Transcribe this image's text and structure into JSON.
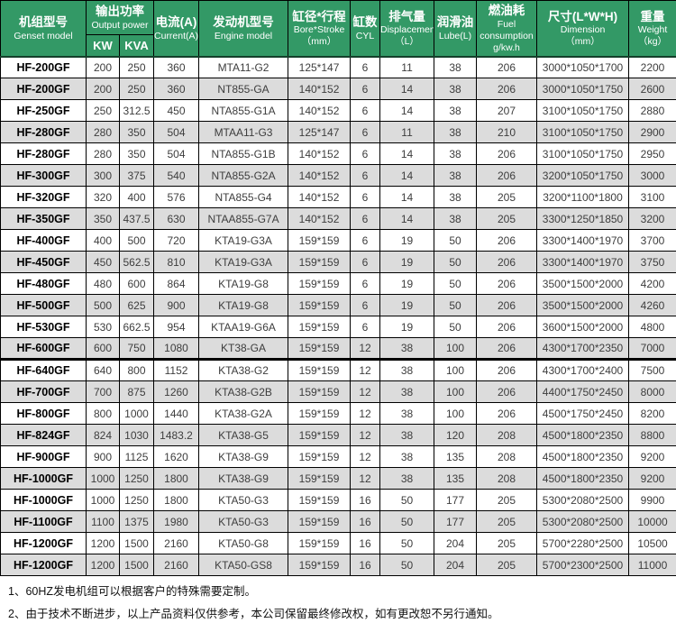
{
  "table": {
    "headers": {
      "model": {
        "zh": "机组型号",
        "en": "Genset model"
      },
      "output_power": {
        "zh": "输出功率",
        "en": "Output power",
        "sub": [
          "KW",
          "KVA"
        ]
      },
      "current": {
        "zh": "电流(A)",
        "en": "Current(A)"
      },
      "engine": {
        "zh": "发动机型号",
        "en": "Engine model"
      },
      "bore_stroke": {
        "zh": "缸径*行程",
        "en": "Bore*Stroke",
        "unit": "（mm）"
      },
      "cyl": {
        "zh": "缸数",
        "en": "CYL"
      },
      "displacement": {
        "zh": "排气量",
        "en": "Displacement",
        "unit": "（L）"
      },
      "lube": {
        "zh": "润滑油",
        "en": "Lube(L)"
      },
      "fuel_consumption": {
        "zh": "燃油耗",
        "en": "Fuel consumption",
        "unit": "g/kw.h"
      },
      "dimension": {
        "zh": "尺寸(L*W*H)",
        "en": "Dimension",
        "unit": "（mm）"
      },
      "weight": {
        "zh": "重量",
        "en": "Weight",
        "unit": "（kg）"
      }
    },
    "column_keys": [
      "model",
      "kw",
      "kva",
      "current",
      "engine",
      "bore_stroke",
      "cyl",
      "displacement",
      "lube",
      "fuel_consumption",
      "dimension",
      "weight"
    ],
    "thick_divider_after_row": 14,
    "rows": [
      [
        "HF-200GF",
        "200",
        "250",
        "360",
        "MTA11-G2",
        "125*147",
        "6",
        "11",
        "38",
        "206",
        "3000*1050*1700",
        "2200"
      ],
      [
        "HF-200GF",
        "200",
        "250",
        "360",
        "NT855-GA",
        "140*152",
        "6",
        "14",
        "38",
        "206",
        "3000*1050*1750",
        "2600"
      ],
      [
        "HF-250GF",
        "250",
        "312.5",
        "450",
        "NTA855-G1A",
        "140*152",
        "6",
        "14",
        "38",
        "207",
        "3100*1050*1750",
        "2880"
      ],
      [
        "HF-280GF",
        "280",
        "350",
        "504",
        "MTAA11-G3",
        "125*147",
        "6",
        "11",
        "38",
        "210",
        "3100*1050*1750",
        "2900"
      ],
      [
        "HF-280GF",
        "280",
        "350",
        "504",
        "NTA855-G1B",
        "140*152",
        "6",
        "14",
        "38",
        "206",
        "3100*1050*1750",
        "2950"
      ],
      [
        "HF-300GF",
        "300",
        "375",
        "540",
        "NTA855-G2A",
        "140*152",
        "6",
        "14",
        "38",
        "206",
        "3200*1050*1750",
        "3000"
      ],
      [
        "HF-320GF",
        "320",
        "400",
        "576",
        "NTA855-G4",
        "140*152",
        "6",
        "14",
        "38",
        "205",
        "3200*1100*1800",
        "3100"
      ],
      [
        "HF-350GF",
        "350",
        "437.5",
        "630",
        "NTAA855-G7A",
        "140*152",
        "6",
        "14",
        "38",
        "205",
        "3300*1250*1850",
        "3200"
      ],
      [
        "HF-400GF",
        "400",
        "500",
        "720",
        "KTA19-G3A",
        "159*159",
        "6",
        "19",
        "50",
        "206",
        "3300*1400*1970",
        "3700"
      ],
      [
        "HF-450GF",
        "450",
        "562.5",
        "810",
        "KTA19-G3A",
        "159*159",
        "6",
        "19",
        "50",
        "206",
        "3300*1400*1970",
        "3750"
      ],
      [
        "HF-480GF",
        "480",
        "600",
        "864",
        "KTA19-G8",
        "159*159",
        "6",
        "19",
        "50",
        "206",
        "3500*1500*2000",
        "4200"
      ],
      [
        "HF-500GF",
        "500",
        "625",
        "900",
        "KTA19-G8",
        "159*159",
        "6",
        "19",
        "50",
        "206",
        "3500*1500*2000",
        "4260"
      ],
      [
        "HF-530GF",
        "530",
        "662.5",
        "954",
        "KTAA19-G6A",
        "159*159",
        "6",
        "19",
        "50",
        "206",
        "3600*1500*2000",
        "4800"
      ],
      [
        "HF-600GF",
        "600",
        "750",
        "1080",
        "KT38-GA",
        "159*159",
        "12",
        "38",
        "100",
        "206",
        "4300*1700*2350",
        "7000"
      ],
      [
        "HF-640GF",
        "640",
        "800",
        "1152",
        "KTA38-G2",
        "159*159",
        "12",
        "38",
        "100",
        "206",
        "4300*1700*2400",
        "7500"
      ],
      [
        "HF-700GF",
        "700",
        "875",
        "1260",
        "KTA38-G2B",
        "159*159",
        "12",
        "38",
        "100",
        "206",
        "4400*1750*2450",
        "8000"
      ],
      [
        "HF-800GF",
        "800",
        "1000",
        "1440",
        "KTA38-G2A",
        "159*159",
        "12",
        "38",
        "100",
        "206",
        "4500*1750*2450",
        "8200"
      ],
      [
        "HF-824GF",
        "824",
        "1030",
        "1483.2",
        "KTA38-G5",
        "159*159",
        "12",
        "38",
        "120",
        "208",
        "4500*1800*2350",
        "8800"
      ],
      [
        "HF-900GF",
        "900",
        "1125",
        "1620",
        "KTA38-G9",
        "159*159",
        "12",
        "38",
        "135",
        "208",
        "4500*1800*2350",
        "9200"
      ],
      [
        "HF-1000GF",
        "1000",
        "1250",
        "1800",
        "KTA38-G9",
        "159*159",
        "12",
        "38",
        "135",
        "208",
        "4500*1800*2350",
        "9200"
      ],
      [
        "HF-1000GF",
        "1000",
        "1250",
        "1800",
        "KTA50-G3",
        "159*159",
        "16",
        "50",
        "177",
        "205",
        "5300*2080*2500",
        "9900"
      ],
      [
        "HF-1100GF",
        "1100",
        "1375",
        "1980",
        "KTA50-G3",
        "159*159",
        "16",
        "50",
        "177",
        "205",
        "5300*2080*2500",
        "10000"
      ],
      [
        "HF-1200GF",
        "1200",
        "1500",
        "2160",
        "KTA50-G8",
        "159*159",
        "16",
        "50",
        "204",
        "205",
        "5700*2280*2500",
        "10500"
      ],
      [
        "HF-1200GF",
        "1200",
        "1500",
        "2160",
        "KTA50-GS8",
        "159*159",
        "16",
        "50",
        "204",
        "205",
        "5700*2300*2500",
        "11000"
      ]
    ]
  },
  "notes": [
    "1、60HZ发电机组可以根据客户的特殊需要定制。",
    "2、由于技术不断进步，以上产品资料仅供参考，本公司保留最终修改权，如有更改恕不另行通知。"
  ],
  "colors": {
    "header_bg": "#339966",
    "header_text": "#ffffff",
    "stripe_bg": "#dcdcdc",
    "border": "#000000",
    "body_text": "#3d3d3d"
  }
}
